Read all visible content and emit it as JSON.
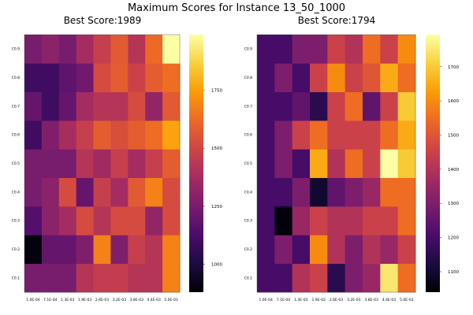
{
  "figure_title": "Maximum Scores for Instance 13_50_1000",
  "colors": {
    "colormap": "inferno",
    "stops": [
      "#000004",
      "#1b0c41",
      "#4a0c6b",
      "#781c6d",
      "#a52c60",
      "#cf4446",
      "#ed6925",
      "#fb9b06",
      "#f7d13d",
      "#fcffa4"
    ],
    "background": "#ffffff",
    "text": "#000000"
  },
  "chart_data": [
    {
      "type": "heatmap",
      "title": "Best Score:1989",
      "x_categories": [
        "1.0E-04",
        "7.1E-04",
        "1.3E-03",
        "1.9E-03",
        "2.6E-03",
        "3.2E-03",
        "3.8E-03",
        "4.4E-03",
        "5.0E-03"
      ],
      "y_categories": [
        "C0.1",
        "C0.2",
        "C0.3",
        "C0.4",
        "C0.5",
        "C0.6",
        "C0.7",
        "C0.8",
        "C0.9"
      ],
      "values": [
        [
          1250,
          1250,
          1250,
          1420,
          1460,
          1460,
          1420,
          1420,
          1680
        ],
        [
          900,
          1200,
          1200,
          1270,
          1680,
          1270,
          1470,
          1420,
          1680
        ],
        [
          1150,
          1300,
          1370,
          1520,
          1420,
          1520,
          1520,
          1320,
          1520
        ],
        [
          1250,
          1300,
          1520,
          1200,
          1470,
          1370,
          1570,
          1680,
          1520
        ],
        [
          1250,
          1250,
          1250,
          1420,
          1360,
          1470,
          1370,
          1470,
          1580
        ],
        [
          1100,
          1270,
          1380,
          1470,
          1580,
          1530,
          1580,
          1630,
          1760
        ],
        [
          1200,
          1100,
          1200,
          1370,
          1420,
          1420,
          1520,
          1320,
          1570
        ],
        [
          1100,
          1100,
          1180,
          1230,
          1520,
          1580,
          1480,
          1580,
          1630
        ],
        [
          1250,
          1300,
          1250,
          1370,
          1470,
          1570,
          1420,
          1620,
          1989
        ]
      ],
      "colorbar": {
        "ticks": [
          1000,
          1250,
          1500,
          1750
        ],
        "range": [
          880,
          1989
        ]
      }
    },
    {
      "type": "heatmap",
      "title": "Best Score:1794",
      "x_categories": [
        "1.0E-04",
        "7.1E-04",
        "1.3E-03",
        "1.9E-03",
        "2.6E-03",
        "3.2E-03",
        "3.8E-03",
        "4.4E-03",
        "5.0E-03"
      ],
      "y_categories": [
        "C0.1",
        "C0.2",
        "C0.3",
        "C0.4",
        "C0.5",
        "C0.6",
        "C0.7",
        "C0.8",
        "C0.9"
      ],
      "values": [
        [
          1200,
          1200,
          1400,
          1450,
          1150,
          1300,
          1350,
          1750,
          1550
        ],
        [
          1200,
          1300,
          1200,
          1600,
          1400,
          1300,
          1400,
          1350,
          1450
        ],
        [
          1200,
          1050,
          1350,
          1450,
          1400,
          1400,
          1450,
          1450,
          1550
        ],
        [
          1200,
          1200,
          1300,
          1100,
          1250,
          1300,
          1350,
          1550,
          1550
        ],
        [
          1200,
          1300,
          1200,
          1650,
          1400,
          1550,
          1450,
          1794,
          1700
        ],
        [
          1200,
          1300,
          1450,
          1550,
          1450,
          1450,
          1450,
          1550,
          1650
        ],
        [
          1200,
          1200,
          1250,
          1150,
          1450,
          1550,
          1250,
          1450,
          1700
        ],
        [
          1200,
          1300,
          1200,
          1450,
          1600,
          1450,
          1500,
          1650,
          1550
        ],
        [
          1200,
          1200,
          1300,
          1300,
          1450,
          1400,
          1550,
          1450,
          1600
        ]
      ],
      "colorbar": {
        "ticks": [
          1100,
          1200,
          1300,
          1400,
          1500,
          1600,
          1700
        ],
        "range": [
          1040,
          1794
        ]
      }
    }
  ]
}
